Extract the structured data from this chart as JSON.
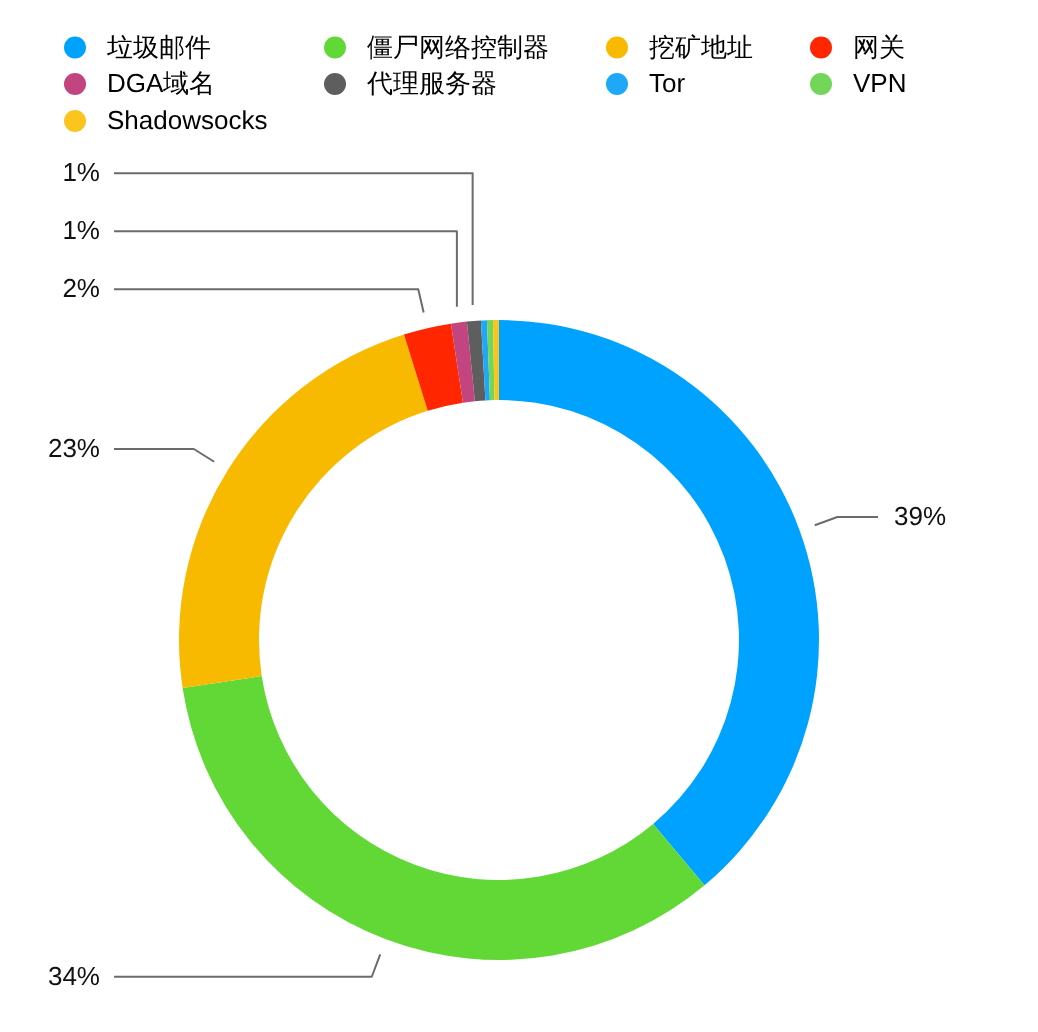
{
  "chart_data": {
    "type": "donut",
    "categories": [
      "垃圾邮件",
      "僵尸网络控制器",
      "挖矿地址",
      "网关",
      "DGA域名",
      "代理服务器",
      "Tor",
      "VPN",
      "Shadowsocks"
    ],
    "values": [
      38.9,
      33.7,
      22.6,
      2.4,
      0.8,
      0.7,
      0.3,
      0.3,
      0.3
    ],
    "colors": [
      "#00a2ff",
      "#61d836",
      "#f8ba00",
      "#ff2600",
      "#c2457f",
      "#5e5e5e",
      "#1ea8f7",
      "#72d65a",
      "#fbc51e"
    ],
    "value_labels": [
      "39%",
      "34%",
      "23%",
      "2%",
      "1%",
      "1%",
      null,
      null,
      null
    ],
    "legend": "top"
  }
}
